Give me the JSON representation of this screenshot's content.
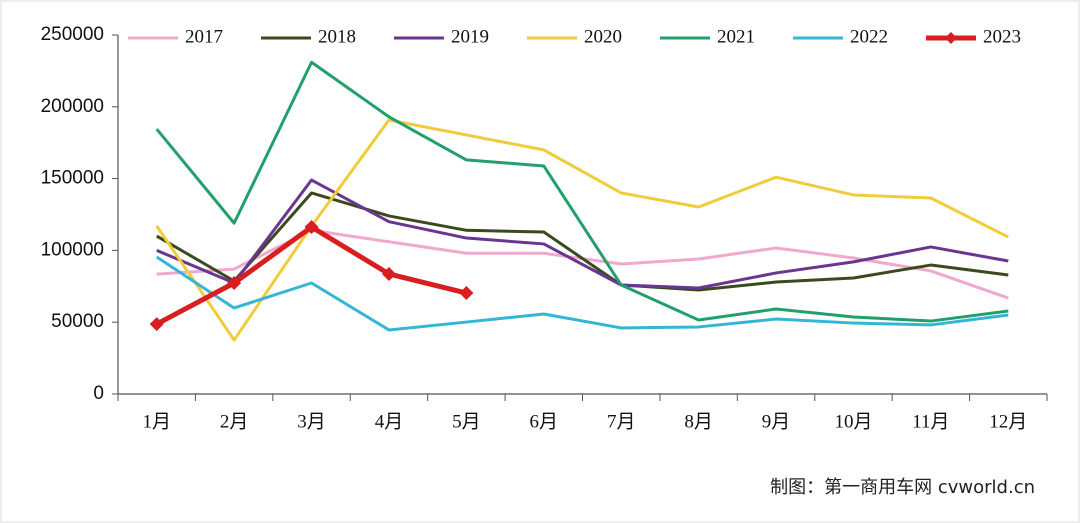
{
  "chart_data": {
    "type": "line",
    "categories": [
      "1月",
      "2月",
      "3月",
      "4月",
      "5月",
      "6月",
      "7月",
      "8月",
      "9月",
      "10月",
      "11月",
      "12月"
    ],
    "series": [
      {
        "name": "2017",
        "color": "#f0a8cc",
        "values": [
          83500,
          87000,
          114000,
          106000,
          98000,
          98000,
          90500,
          94000,
          101700,
          94700,
          85700,
          66800
        ]
      },
      {
        "name": "2018",
        "color": "#3a4a1e",
        "values": [
          110000,
          78700,
          140000,
          124000,
          114000,
          112800,
          75900,
          72400,
          78000,
          80800,
          89800,
          82900
        ]
      },
      {
        "name": "2019",
        "color": "#6a3590",
        "values": [
          100000,
          77300,
          149000,
          120000,
          108600,
          104500,
          75900,
          73800,
          84300,
          92000,
          102400,
          92600
        ]
      },
      {
        "name": "2020",
        "color": "#f0cc3c",
        "values": [
          117000,
          37600,
          117000,
          190800,
          180400,
          170000,
          140000,
          130200,
          151000,
          138600,
          136500,
          109300
        ]
      },
      {
        "name": "2021",
        "color": "#22a06b",
        "values": [
          184500,
          119000,
          231000,
          193000,
          163000,
          158800,
          75900,
          51500,
          59200,
          53600,
          50800,
          57800
        ]
      },
      {
        "name": "2022",
        "color": "#33b5d6",
        "values": [
          95400,
          59900,
          77300,
          44600,
          50100,
          55700,
          46000,
          46700,
          52200,
          49400,
          48100,
          55000
        ]
      },
      {
        "name": "2023",
        "color": "#d81e1e",
        "marker": "diamond",
        "values": [
          48700,
          77300,
          116300,
          83600,
          70300,
          null,
          null,
          null,
          null,
          null,
          null,
          null
        ]
      }
    ],
    "ylim": [
      0,
      250000
    ],
    "yticks": [
      0,
      50000,
      100000,
      150000,
      200000,
      250000
    ],
    "legend": "top",
    "annotation": "制图：第一商用车网 cvworld.cn"
  }
}
